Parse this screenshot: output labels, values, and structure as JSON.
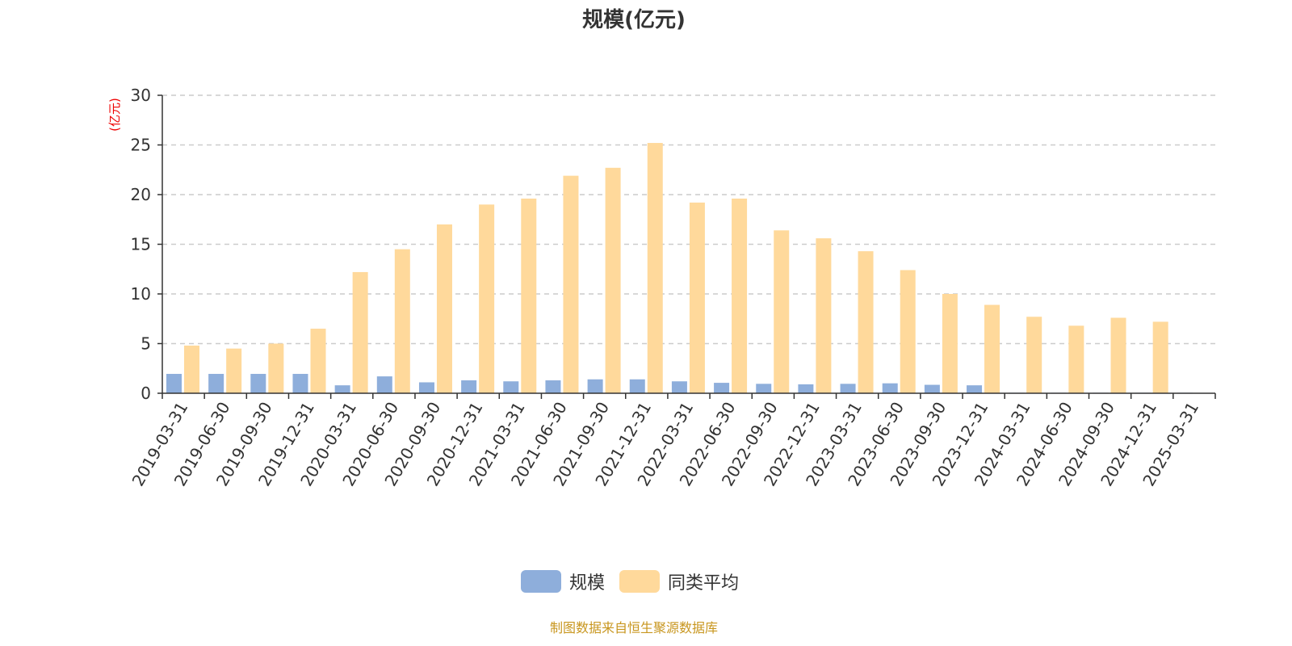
{
  "chart_data": {
    "type": "bar",
    "title": "规模(亿元)",
    "ylabel": "(亿元)",
    "xlabel": "",
    "ylim": [
      0,
      30
    ],
    "yticks": [
      0,
      5,
      10,
      15,
      20,
      25,
      30
    ],
    "grid": true,
    "legend_position": "bottom",
    "categories": [
      "2019-03-31",
      "2019-06-30",
      "2019-09-30",
      "2019-12-31",
      "2020-03-31",
      "2020-06-30",
      "2020-09-30",
      "2020-12-31",
      "2021-03-31",
      "2021-06-30",
      "2021-09-30",
      "2021-12-31",
      "2022-03-31",
      "2022-06-30",
      "2022-09-30",
      "2022-12-31",
      "2023-03-31",
      "2023-06-30",
      "2023-09-30",
      "2023-12-31",
      "2024-03-31",
      "2024-06-30",
      "2024-09-30",
      "2024-12-31",
      "2025-03-31"
    ],
    "series": [
      {
        "name": "规模",
        "color": "#8eaedb",
        "values": [
          1.95,
          1.95,
          1.95,
          1.95,
          0.8,
          1.7,
          1.1,
          1.3,
          1.2,
          1.3,
          1.4,
          1.4,
          1.2,
          1.05,
          0.95,
          0.9,
          0.95,
          1.0,
          0.85,
          0.8,
          0.05,
          0.05,
          0.05,
          0.05,
          0.05
        ]
      },
      {
        "name": "同类平均",
        "color": "#ffd99b",
        "values": [
          4.8,
          4.5,
          5.0,
          6.5,
          12.2,
          14.5,
          17.0,
          19.0,
          19.6,
          21.9,
          22.7,
          25.2,
          19.2,
          19.6,
          16.4,
          15.6,
          14.3,
          12.4,
          10.0,
          8.9,
          7.7,
          6.8,
          7.6,
          7.2,
          0
        ]
      }
    ]
  },
  "source": "制图数据来自恒生聚源数据库"
}
